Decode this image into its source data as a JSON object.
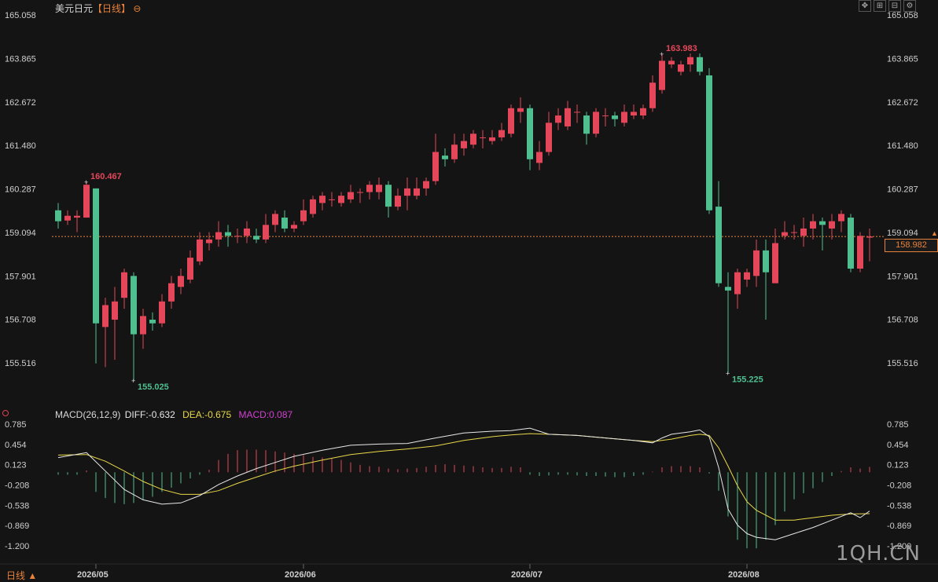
{
  "header": {
    "symbol": "美元日元",
    "period": "【日线】",
    "collapse_icon": "⊖"
  },
  "toolbar": {
    "buttons": [
      {
        "name": "move-icon",
        "glyph": "✥"
      },
      {
        "name": "zoom-in-icon",
        "glyph": "⊞"
      },
      {
        "name": "zoom-out-icon",
        "glyph": "⊟"
      },
      {
        "name": "settings-icon",
        "glyph": "⚙"
      }
    ]
  },
  "colors": {
    "up": "#e4475a",
    "down": "#4fbf90",
    "diff": "#e8e8e8",
    "dea": "#e8d84a",
    "macd_text": "#d040d0",
    "price_line": "#e8823a",
    "axis_text": "#cfcfcf",
    "hi_label": "#e4475a",
    "lo_label": "#4fbf90"
  },
  "price_axis": {
    "ticks": [
      "165.058",
      "163.865",
      "162.672",
      "161.480",
      "160.287",
      "159.094",
      "157.901",
      "156.708",
      "155.516"
    ],
    "current": "158.982"
  },
  "macd_header": {
    "title": "MACD(26,12,9)",
    "diff": "DIFF:-0.632",
    "dea": "DEA:-0.675",
    "macd": "MACD:0.087"
  },
  "macd_axis": {
    "ticks": [
      "0.785",
      "0.454",
      "0.123",
      "-0.208",
      "-0.538",
      "-0.869",
      "-1.200"
    ]
  },
  "x_axis": {
    "labels": [
      {
        "text": "2026/05",
        "index": 4
      },
      {
        "text": "2026/06",
        "index": 26
      },
      {
        "text": "2026/07",
        "index": 50
      },
      {
        "text": "2026/08",
        "index": 73
      }
    ]
  },
  "footer": {
    "period_label": "日线 ▲"
  },
  "watermark": "1QH.CN",
  "chart_data": {
    "type": "candlestick",
    "title": "美元日元【日线】",
    "ylim": [
      154.6,
      165.2
    ],
    "annotations": [
      {
        "text": "160.467",
        "index": 3,
        "value": 160.467,
        "kind": "high"
      },
      {
        "text": "155.025",
        "index": 8,
        "value": 155.025,
        "kind": "low"
      },
      {
        "text": "163.983",
        "index": 64,
        "value": 163.983,
        "kind": "high"
      },
      {
        "text": "155.225",
        "index": 71,
        "value": 155.225,
        "kind": "low"
      }
    ],
    "candles": [
      [
        159.7,
        159.4,
        159.9,
        159.2
      ],
      [
        159.42,
        159.55,
        159.7,
        159.3
      ],
      [
        159.5,
        159.55,
        159.7,
        159.1
      ],
      [
        159.5,
        160.4,
        160.467,
        159.5
      ],
      [
        160.3,
        156.6,
        160.3,
        155.5
      ],
      [
        156.5,
        157.1,
        157.3,
        155.4
      ],
      [
        156.7,
        157.2,
        157.6,
        155.6
      ],
      [
        157.3,
        158.0,
        158.1,
        157.0
      ],
      [
        157.9,
        156.3,
        158.0,
        155.025
      ],
      [
        156.3,
        156.8,
        157.0,
        155.9
      ],
      [
        156.7,
        156.6,
        156.9,
        156.4
      ],
      [
        156.6,
        157.2,
        157.4,
        156.5
      ],
      [
        157.2,
        157.7,
        157.9,
        157.0
      ],
      [
        157.6,
        157.9,
        158.1,
        157.4
      ],
      [
        157.8,
        158.4,
        158.6,
        157.7
      ],
      [
        158.3,
        158.9,
        159.1,
        158.2
      ],
      [
        158.8,
        158.9,
        159.1,
        158.6
      ],
      [
        158.9,
        159.1,
        159.4,
        158.7
      ],
      [
        159.1,
        159.0,
        159.3,
        158.7
      ],
      [
        159.0,
        159.0,
        159.2,
        158.8
      ],
      [
        159.0,
        159.2,
        159.4,
        158.8
      ],
      [
        159.0,
        158.9,
        159.2,
        158.8
      ],
      [
        158.9,
        159.3,
        159.6,
        158.8
      ],
      [
        159.3,
        159.6,
        159.7,
        159.1
      ],
      [
        159.5,
        159.2,
        159.7,
        159.1
      ],
      [
        159.2,
        159.3,
        159.4,
        159.1
      ],
      [
        159.4,
        159.7,
        160.0,
        159.3
      ],
      [
        159.6,
        160.0,
        160.1,
        159.5
      ],
      [
        159.9,
        160.1,
        160.2,
        159.7
      ],
      [
        160.0,
        160.0,
        160.2,
        159.8
      ],
      [
        159.9,
        160.1,
        160.2,
        159.8
      ],
      [
        160.0,
        160.2,
        160.4,
        159.9
      ],
      [
        160.2,
        160.2,
        160.3,
        159.9
      ],
      [
        160.2,
        160.4,
        160.5,
        160.0
      ],
      [
        160.2,
        160.4,
        160.6,
        160.0
      ],
      [
        160.4,
        159.8,
        160.5,
        159.5
      ],
      [
        159.8,
        160.1,
        160.3,
        159.7
      ],
      [
        160.1,
        160.3,
        160.6,
        159.7
      ],
      [
        160.1,
        160.3,
        160.6,
        160.0
      ],
      [
        160.3,
        160.5,
        160.6,
        160.1
      ],
      [
        160.5,
        161.3,
        161.8,
        160.4
      ],
      [
        161.2,
        161.1,
        161.4,
        160.9
      ],
      [
        161.1,
        161.5,
        161.8,
        161.0
      ],
      [
        161.4,
        161.6,
        161.8,
        161.2
      ],
      [
        161.5,
        161.8,
        161.9,
        161.4
      ],
      [
        161.7,
        161.7,
        161.9,
        161.4
      ],
      [
        161.6,
        161.7,
        161.9,
        161.5
      ],
      [
        161.7,
        161.9,
        162.1,
        161.6
      ],
      [
        161.8,
        162.5,
        162.6,
        161.7
      ],
      [
        162.4,
        162.5,
        162.8,
        162.1
      ],
      [
        162.5,
        161.1,
        162.6,
        160.8
      ],
      [
        161.0,
        161.3,
        161.6,
        160.8
      ],
      [
        161.3,
        162.1,
        162.4,
        161.2
      ],
      [
        162.1,
        162.3,
        162.5,
        161.9
      ],
      [
        162.0,
        162.5,
        162.7,
        161.9
      ],
      [
        162.4,
        162.4,
        162.6,
        162.1
      ],
      [
        162.3,
        161.8,
        162.4,
        161.5
      ],
      [
        161.8,
        162.4,
        162.5,
        161.7
      ],
      [
        162.3,
        162.3,
        162.5,
        162.0
      ],
      [
        162.3,
        162.2,
        162.4,
        162.0
      ],
      [
        162.1,
        162.4,
        162.6,
        162.0
      ],
      [
        162.3,
        162.4,
        162.6,
        162.2
      ],
      [
        162.3,
        162.5,
        162.6,
        162.2
      ],
      [
        162.5,
        163.2,
        163.4,
        162.4
      ],
      [
        163.0,
        163.8,
        163.983,
        162.9
      ],
      [
        163.7,
        163.8,
        163.9,
        163.6
      ],
      [
        163.5,
        163.7,
        163.8,
        163.4
      ],
      [
        163.7,
        163.9,
        164.0,
        163.5
      ],
      [
        163.9,
        163.5,
        164.0,
        163.4
      ],
      [
        163.4,
        159.7,
        163.6,
        159.6
      ],
      [
        159.8,
        157.7,
        160.5,
        157.6
      ],
      [
        157.6,
        157.5,
        158.0,
        155.225
      ],
      [
        157.4,
        158.0,
        158.1,
        157.0
      ],
      [
        157.8,
        158.0,
        158.1,
        157.6
      ],
      [
        157.9,
        158.6,
        158.9,
        157.6
      ],
      [
        158.6,
        158.0,
        158.9,
        156.7
      ],
      [
        157.7,
        158.8,
        159.2,
        157.7
      ],
      [
        159.0,
        159.1,
        159.4,
        158.9
      ],
      [
        159.1,
        159.1,
        159.3,
        158.9
      ],
      [
        159.0,
        159.2,
        159.5,
        158.7
      ],
      [
        159.2,
        159.4,
        159.6,
        158.9
      ],
      [
        159.4,
        159.3,
        159.5,
        158.6
      ],
      [
        159.2,
        159.4,
        159.6,
        158.9
      ],
      [
        159.4,
        159.6,
        159.7,
        159.1
      ],
      [
        159.5,
        158.1,
        159.6,
        158.0
      ],
      [
        158.1,
        159.0,
        159.1,
        158.0
      ],
      [
        158.95,
        158.982,
        159.2,
        158.3
      ]
    ],
    "macd": {
      "diff_points": [
        [
          0,
          0.24
        ],
        [
          3,
          0.32
        ],
        [
          5,
          0.02
        ],
        [
          7,
          -0.28
        ],
        [
          9,
          -0.45
        ],
        [
          11,
          -0.52
        ],
        [
          13,
          -0.5
        ],
        [
          15,
          -0.38
        ],
        [
          17,
          -0.2
        ],
        [
          19,
          -0.06
        ],
        [
          21,
          0.06
        ],
        [
          23,
          0.16
        ],
        [
          25,
          0.26
        ],
        [
          28,
          0.36
        ],
        [
          31,
          0.44
        ],
        [
          34,
          0.46
        ],
        [
          37,
          0.47
        ],
        [
          40,
          0.56
        ],
        [
          43,
          0.64
        ],
        [
          46,
          0.67
        ],
        [
          48,
          0.68
        ],
        [
          50,
          0.72
        ],
        [
          52,
          0.62
        ],
        [
          55,
          0.6
        ],
        [
          58,
          0.56
        ],
        [
          61,
          0.52
        ],
        [
          63,
          0.48
        ],
        [
          64,
          0.56
        ],
        [
          65,
          0.62
        ],
        [
          67,
          0.66
        ],
        [
          68,
          0.69
        ],
        [
          69,
          0.58
        ],
        [
          70,
          0.08
        ],
        [
          71,
          -0.6
        ],
        [
          72,
          -0.86
        ],
        [
          73,
          -1.0
        ],
        [
          74,
          -1.06
        ],
        [
          76,
          -1.1
        ],
        [
          78,
          -1.0
        ],
        [
          80,
          -0.9
        ],
        [
          82,
          -0.78
        ],
        [
          84,
          -0.66
        ],
        [
          85,
          -0.74
        ],
        [
          86,
          -0.632
        ]
      ],
      "dea_points": [
        [
          0,
          0.28
        ],
        [
          3,
          0.29
        ],
        [
          5,
          0.18
        ],
        [
          7,
          0.02
        ],
        [
          9,
          -0.15
        ],
        [
          11,
          -0.28
        ],
        [
          13,
          -0.36
        ],
        [
          15,
          -0.36
        ],
        [
          17,
          -0.3
        ],
        [
          19,
          -0.18
        ],
        [
          21,
          -0.08
        ],
        [
          23,
          0.02
        ],
        [
          25,
          0.1
        ],
        [
          28,
          0.2
        ],
        [
          31,
          0.29
        ],
        [
          34,
          0.34
        ],
        [
          37,
          0.38
        ],
        [
          40,
          0.43
        ],
        [
          43,
          0.52
        ],
        [
          46,
          0.58
        ],
        [
          48,
          0.61
        ],
        [
          50,
          0.63
        ],
        [
          52,
          0.62
        ],
        [
          55,
          0.6
        ],
        [
          58,
          0.56
        ],
        [
          61,
          0.52
        ],
        [
          63,
          0.5
        ],
        [
          65,
          0.54
        ],
        [
          67,
          0.6
        ],
        [
          68,
          0.62
        ],
        [
          69,
          0.6
        ],
        [
          70,
          0.4
        ],
        [
          71,
          0.1
        ],
        [
          72,
          -0.22
        ],
        [
          73,
          -0.48
        ],
        [
          74,
          -0.62
        ],
        [
          76,
          -0.78
        ],
        [
          78,
          -0.78
        ],
        [
          80,
          -0.74
        ],
        [
          82,
          -0.7
        ],
        [
          84,
          -0.68
        ],
        [
          86,
          -0.675
        ]
      ],
      "hist": [
        -0.04,
        -0.04,
        -0.04,
        0.03,
        -0.32,
        -0.42,
        -0.5,
        -0.52,
        -0.5,
        -0.45,
        -0.4,
        -0.32,
        -0.25,
        -0.18,
        -0.1,
        -0.04,
        0.04,
        0.2,
        0.3,
        0.36,
        0.37,
        0.37,
        0.36,
        0.34,
        0.32,
        0.3,
        0.28,
        0.25,
        0.24,
        0.22,
        0.2,
        0.16,
        0.12,
        0.1,
        0.09,
        0.06,
        0.05,
        0.06,
        0.07,
        0.09,
        0.12,
        0.13,
        0.12,
        0.11,
        0.1,
        0.08,
        0.07,
        0.07,
        0.09,
        0.08,
        -0.04,
        -0.06,
        -0.05,
        -0.04,
        -0.04,
        -0.05,
        -0.06,
        -0.06,
        -0.07,
        -0.08,
        -0.08,
        -0.06,
        -0.04,
        0.01,
        0.08,
        0.1,
        0.1,
        0.1,
        0.08,
        -0.02,
        -0.3,
        -0.72,
        -1.1,
        -1.24,
        -1.24,
        -1.1,
        -0.86,
        -0.64,
        -0.44,
        -0.34,
        -0.26,
        -0.16,
        -0.06,
        0.02,
        0.08,
        0.06,
        0.087
      ]
    }
  }
}
